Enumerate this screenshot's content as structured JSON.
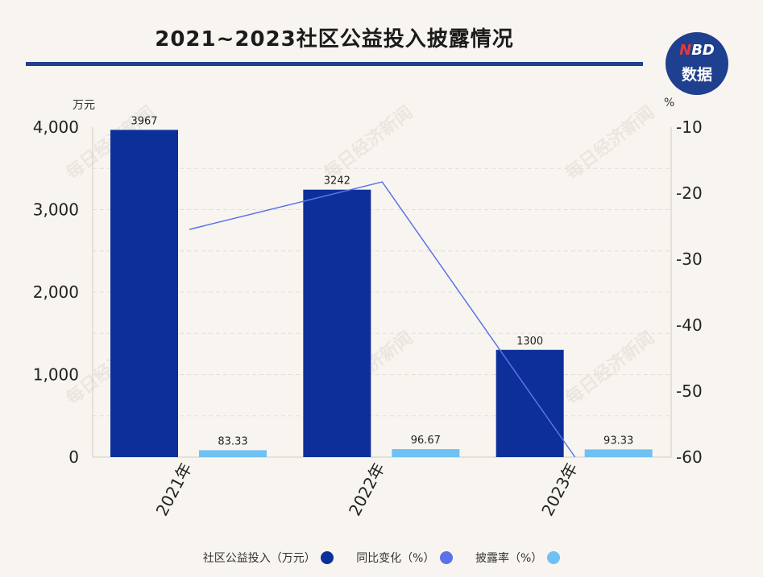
{
  "title": "2021~2023社区公益投入披露情况",
  "logo": {
    "line1_n": "N",
    "line1_rest": "BD",
    "line2": "数据"
  },
  "watermark": "每日经济新闻",
  "colors": {
    "invest": "#0d2f99",
    "yoy": "#5b73e8",
    "rate": "#6ec1f2"
  },
  "chart_data": {
    "type": "bar",
    "title": "2021~2023社区公益投入披露情况",
    "categories": [
      "2021年",
      "2022年",
      "2023年"
    ],
    "y_left": {
      "label": "万元",
      "ylim": [
        0,
        4000
      ],
      "ticks": [
        "0",
        "1,000",
        "2,000",
        "3,000",
        "4,000"
      ],
      "tick_values": [
        0,
        1000,
        2000,
        3000,
        4000
      ]
    },
    "y_right": {
      "label": "%",
      "ylim": [
        -60,
        -10
      ],
      "ticks": [
        "-10",
        "-20",
        "-30",
        "-40",
        "-50",
        "-60"
      ],
      "tick_values": [
        -10,
        -20,
        -30,
        -40,
        -50,
        -60
      ]
    },
    "series": [
      {
        "name": "社区公益投入（万元）",
        "type": "bar",
        "axis": "left",
        "values": [
          3967,
          3242,
          1300
        ],
        "labels": [
          "3967",
          "3242",
          "1300"
        ],
        "color": "#0d2f99"
      },
      {
        "name": "同比变化（%）",
        "type": "line",
        "axis": "right",
        "values": [
          -25.5,
          -18.3,
          -60
        ],
        "color": "#5b73e8"
      },
      {
        "name": "披露率（%）",
        "type": "bar",
        "axis": "left",
        "values": [
          83.33,
          96.67,
          93.33
        ],
        "labels": [
          "83.33",
          "96.67",
          "93.33"
        ],
        "color": "#6ec1f2"
      }
    ],
    "grid": true,
    "legend": "bottom"
  }
}
